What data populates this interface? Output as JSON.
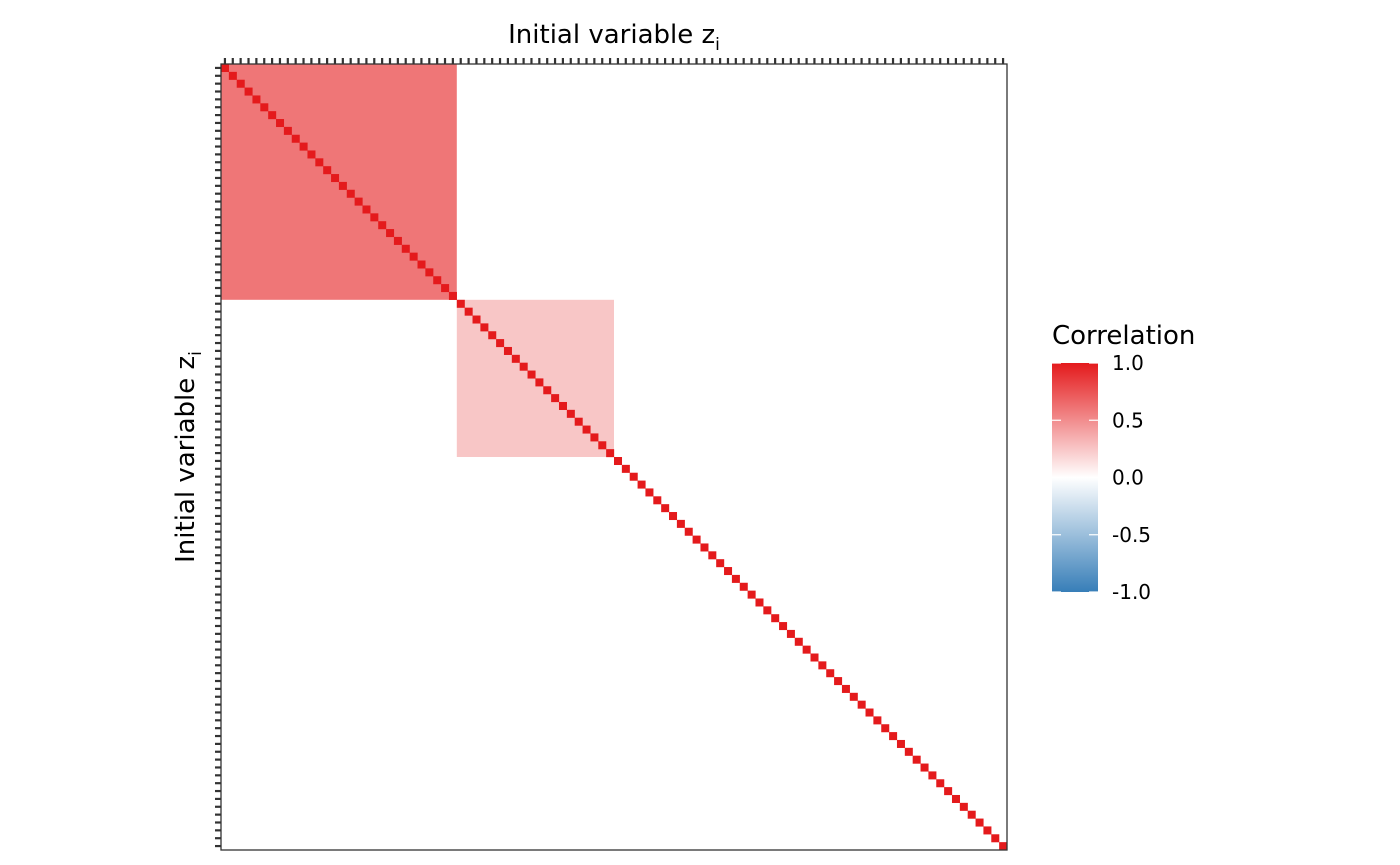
{
  "chart_data": {
    "type": "heatmap",
    "n_variables": 100,
    "diagonal_value": 1.0,
    "blocks": [
      {
        "start": 1,
        "end": 30,
        "value": 0.6
      },
      {
        "start": 31,
        "end": 50,
        "value": 0.25
      }
    ],
    "off_block_value": 0.0,
    "x_axis_title": "Initial variable z",
    "x_axis_subscript": "i",
    "y_axis_title": "Initial variable z",
    "y_axis_subscript": "i",
    "x_axis_position": "top",
    "grid": false,
    "legend": {
      "title": "Correlation",
      "placement": "right",
      "breaks": [
        "1.0",
        "0.5",
        "0.0",
        "-0.5",
        "-1.0"
      ],
      "break_values": [
        1.0,
        0.5,
        0.0,
        -0.5,
        -1.0
      ],
      "limits": [
        -1.0,
        1.0
      ]
    },
    "colors": {
      "high": "#e41a1c",
      "mid": "#ffffff",
      "low": "#377eb8"
    }
  }
}
